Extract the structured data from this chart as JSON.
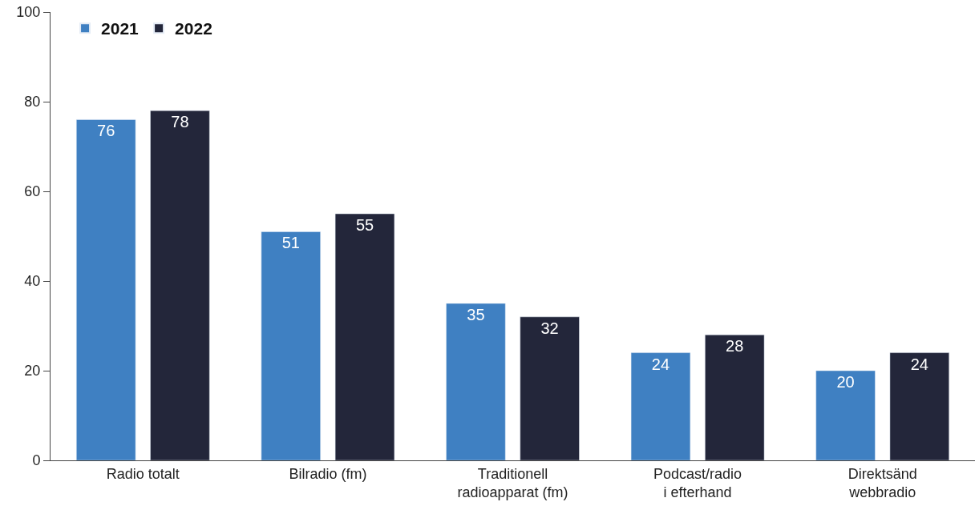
{
  "chart_data": {
    "type": "bar",
    "categories": [
      "Radio totalt",
      "Bilradio (fm)",
      "Traditionell\nradioapparat (fm)",
      "Podcast/radio\ni efterhand",
      "Direktsänd\nwebbradio"
    ],
    "series": [
      {
        "name": "2021",
        "color": "#3f80c2",
        "values": [
          76,
          51,
          35,
          24,
          20
        ]
      },
      {
        "name": "2022",
        "color": "#23263a",
        "values": [
          78,
          55,
          32,
          28,
          24
        ]
      }
    ],
    "ylim": [
      0,
      100
    ],
    "yticks": [
      0,
      20,
      40,
      60,
      80,
      100
    ],
    "legend": "top left",
    "data_labels": true
  }
}
